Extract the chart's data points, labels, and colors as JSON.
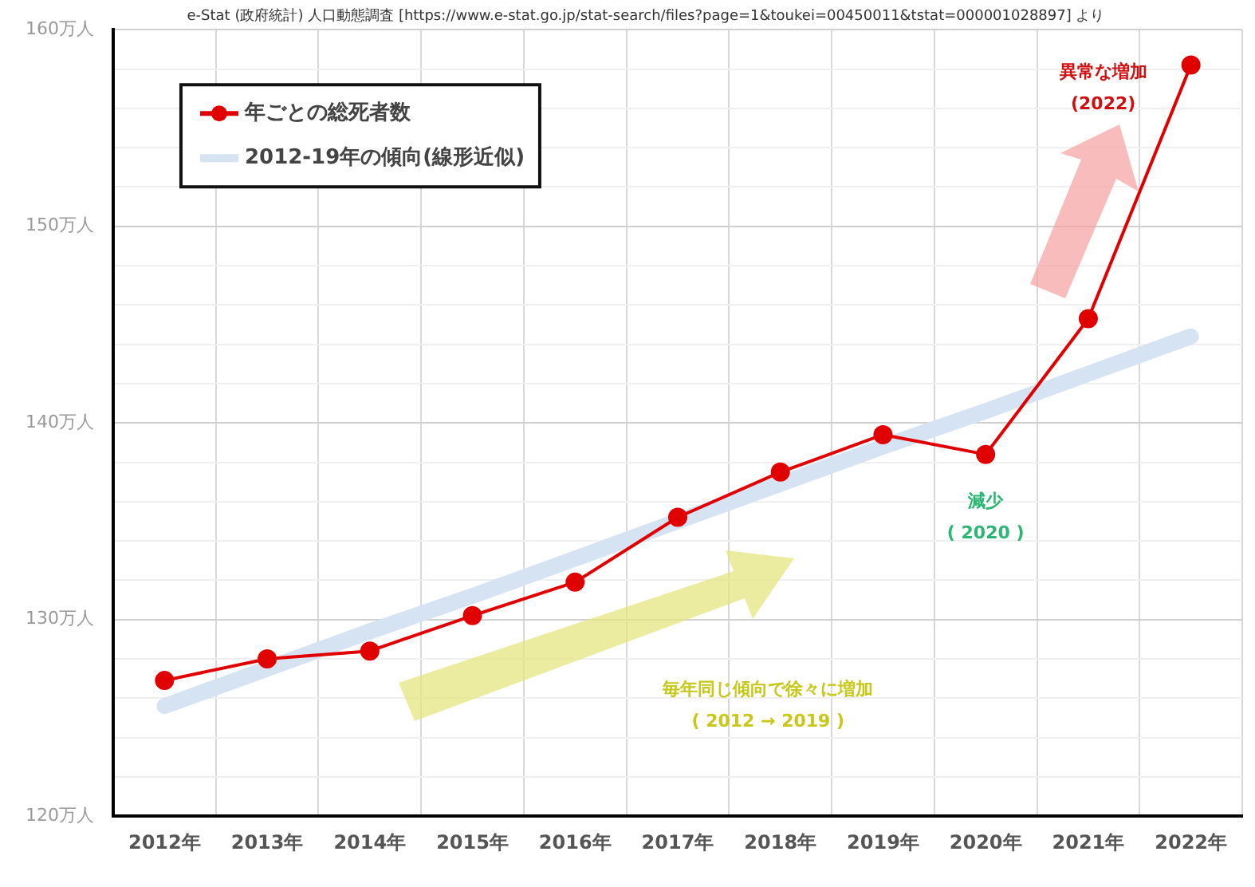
{
  "chart_data": {
    "type": "line",
    "categories": [
      "2012年",
      "2013年",
      "2014年",
      "2015年",
      "2016年",
      "2017年",
      "2018年",
      "2019年",
      "2020年",
      "2021年",
      "2022年"
    ],
    "series": [
      {
        "name": "2012-19年の傾向(線形近似)",
        "color": "#d6e3f2",
        "values": [
          125.6,
          127.5,
          129.4,
          131.2,
          133.1,
          135.0,
          136.9,
          138.8,
          140.6,
          142.5,
          144.4
        ]
      },
      {
        "name": "年ごとの総死者数",
        "color": "#e00000",
        "values": [
          126.9,
          128.0,
          128.4,
          130.2,
          131.9,
          135.2,
          137.5,
          139.4,
          138.4,
          145.3,
          158.2
        ],
        "marker": "circle"
      }
    ],
    "ylim": [
      120,
      160
    ],
    "yticks": [
      {
        "value": 120,
        "label": "120万人"
      },
      {
        "value": 122,
        "label": null
      },
      {
        "value": 124,
        "label": null
      },
      {
        "value": 126,
        "label": null
      },
      {
        "value": 128,
        "label": null
      },
      {
        "value": 130,
        "label": "130万人"
      },
      {
        "value": 132,
        "label": null
      },
      {
        "value": 134,
        "label": null
      },
      {
        "value": 136,
        "label": null
      },
      {
        "value": 138,
        "label": null
      },
      {
        "value": 140,
        "label": "140万人"
      },
      {
        "value": 142,
        "label": null
      },
      {
        "value": 144,
        "label": null
      },
      {
        "value": 146,
        "label": null
      },
      {
        "value": 148,
        "label": null
      },
      {
        "value": 150,
        "label": "150万人"
      },
      {
        "value": 152,
        "label": null
      },
      {
        "value": 154,
        "label": null
      },
      {
        "value": 156,
        "label": null
      },
      {
        "value": 158,
        "label": null
      },
      {
        "value": 160,
        "label": "160万人"
      }
    ],
    "grid": true,
    "legend": "top left",
    "annotations": [
      "e-Stat (政府統計) 人口動態調査 [https://www.e-stat.go.jp/stat-search/files?page=1&toukei=00450011&tstat=000001028897] より",
      {
        "text": "異常な増加\n(2022)",
        "x": "2022年",
        "y": 158.2
      },
      {
        "text": "減少\n( 2020 )",
        "x": "2020年",
        "y": 138.4
      },
      "毎年同じ傾向で徐々に増加\n( 2012 → 2019 )"
    ]
  }
}
